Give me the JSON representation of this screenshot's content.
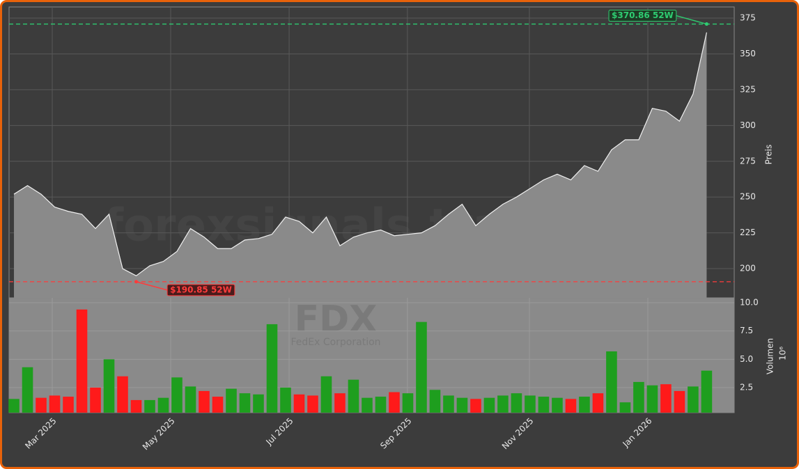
{
  "chart_data": {
    "type": "area",
    "categories": [
      null,
      null,
      null,
      null,
      null,
      null,
      null,
      null,
      null,
      null,
      null,
      null,
      null,
      null,
      null,
      null,
      null,
      null,
      null,
      null,
      null,
      null,
      null,
      null,
      null,
      null,
      null,
      null,
      null,
      null,
      null,
      null,
      null,
      null,
      null,
      null,
      null,
      null,
      null,
      null,
      null,
      null,
      null,
      null,
      null,
      null,
      null,
      null,
      null,
      null,
      null,
      null
    ],
    "values": [
      252,
      258,
      252,
      243,
      240,
      238,
      228,
      238,
      200,
      195,
      202,
      205,
      212,
      228,
      222,
      214,
      214,
      220,
      221,
      224,
      236,
      233,
      225,
      236,
      216,
      222,
      225,
      227,
      223,
      224,
      225,
      230,
      238,
      245,
      230,
      238,
      245,
      250,
      256,
      262,
      266,
      262,
      272,
      268,
      283,
      290,
      290,
      312,
      310,
      303,
      322,
      365
    ],
    "color": "#8a8a8a",
    "y_label": "Preis",
    "ylim": [
      179.6,
      382.8
    ],
    "yticks": [
      200,
      225,
      250,
      275,
      300,
      325,
      350,
      375
    ],
    "xlim": [
      -0.36,
      53.03
    ],
    "xticks": [
      {
        "value": 2.82,
        "label": "Mar 2025"
      },
      {
        "value": 11.54,
        "label": "May 2025"
      },
      {
        "value": 20.26,
        "label": "Jul 2025"
      },
      {
        "value": 28.97,
        "label": "Sep 2025"
      },
      {
        "value": 37.95,
        "label": "Nov 2025"
      },
      {
        "value": 46.67,
        "label": "Jan 2026"
      }
    ],
    "grid": true,
    "annotations": [
      {
        "text": "$370.86 52W",
        "value": 370.86,
        "color": "#2ecc71"
      },
      {
        "text": "$190.85 52W",
        "value": 190.85,
        "color": "#ff3b3b"
      }
    ],
    "watermark": "forexsignals.trade",
    "symbol": "FDX",
    "company": "FedEx Corporation",
    "volume": {
      "type": "bar",
      "values": [
        1.5,
        4.3,
        1.6,
        1.8,
        1.7,
        9.4,
        2.5,
        5.0,
        3.5,
        1.4,
        1.4,
        1.6,
        3.4,
        2.6,
        2.2,
        1.7,
        2.4,
        2.0,
        1.9,
        8.1,
        2.5,
        1.9,
        1.8,
        3.5,
        2.0,
        3.2,
        1.6,
        1.7,
        2.1,
        2.0,
        8.3,
        2.3,
        1.8,
        1.6,
        1.5,
        1.6,
        1.8,
        2.0,
        1.8,
        1.7,
        1.6,
        1.5,
        1.7,
        2.0,
        5.7,
        1.2,
        3.0,
        2.7,
        2.8,
        2.2,
        2.6,
        4.0
      ],
      "up_color": "#1e9e1e",
      "down_color": "#ff1a1a",
      "y_label": "Volumen",
      "y_scale_label": "10⁶",
      "ylim": [
        0.29,
        10.43
      ],
      "yticks": [
        {
          "value": 10,
          "label": "10.0"
        },
        7.5,
        {
          "value": 5,
          "label": "5.0"
        },
        2.5
      ]
    }
  }
}
